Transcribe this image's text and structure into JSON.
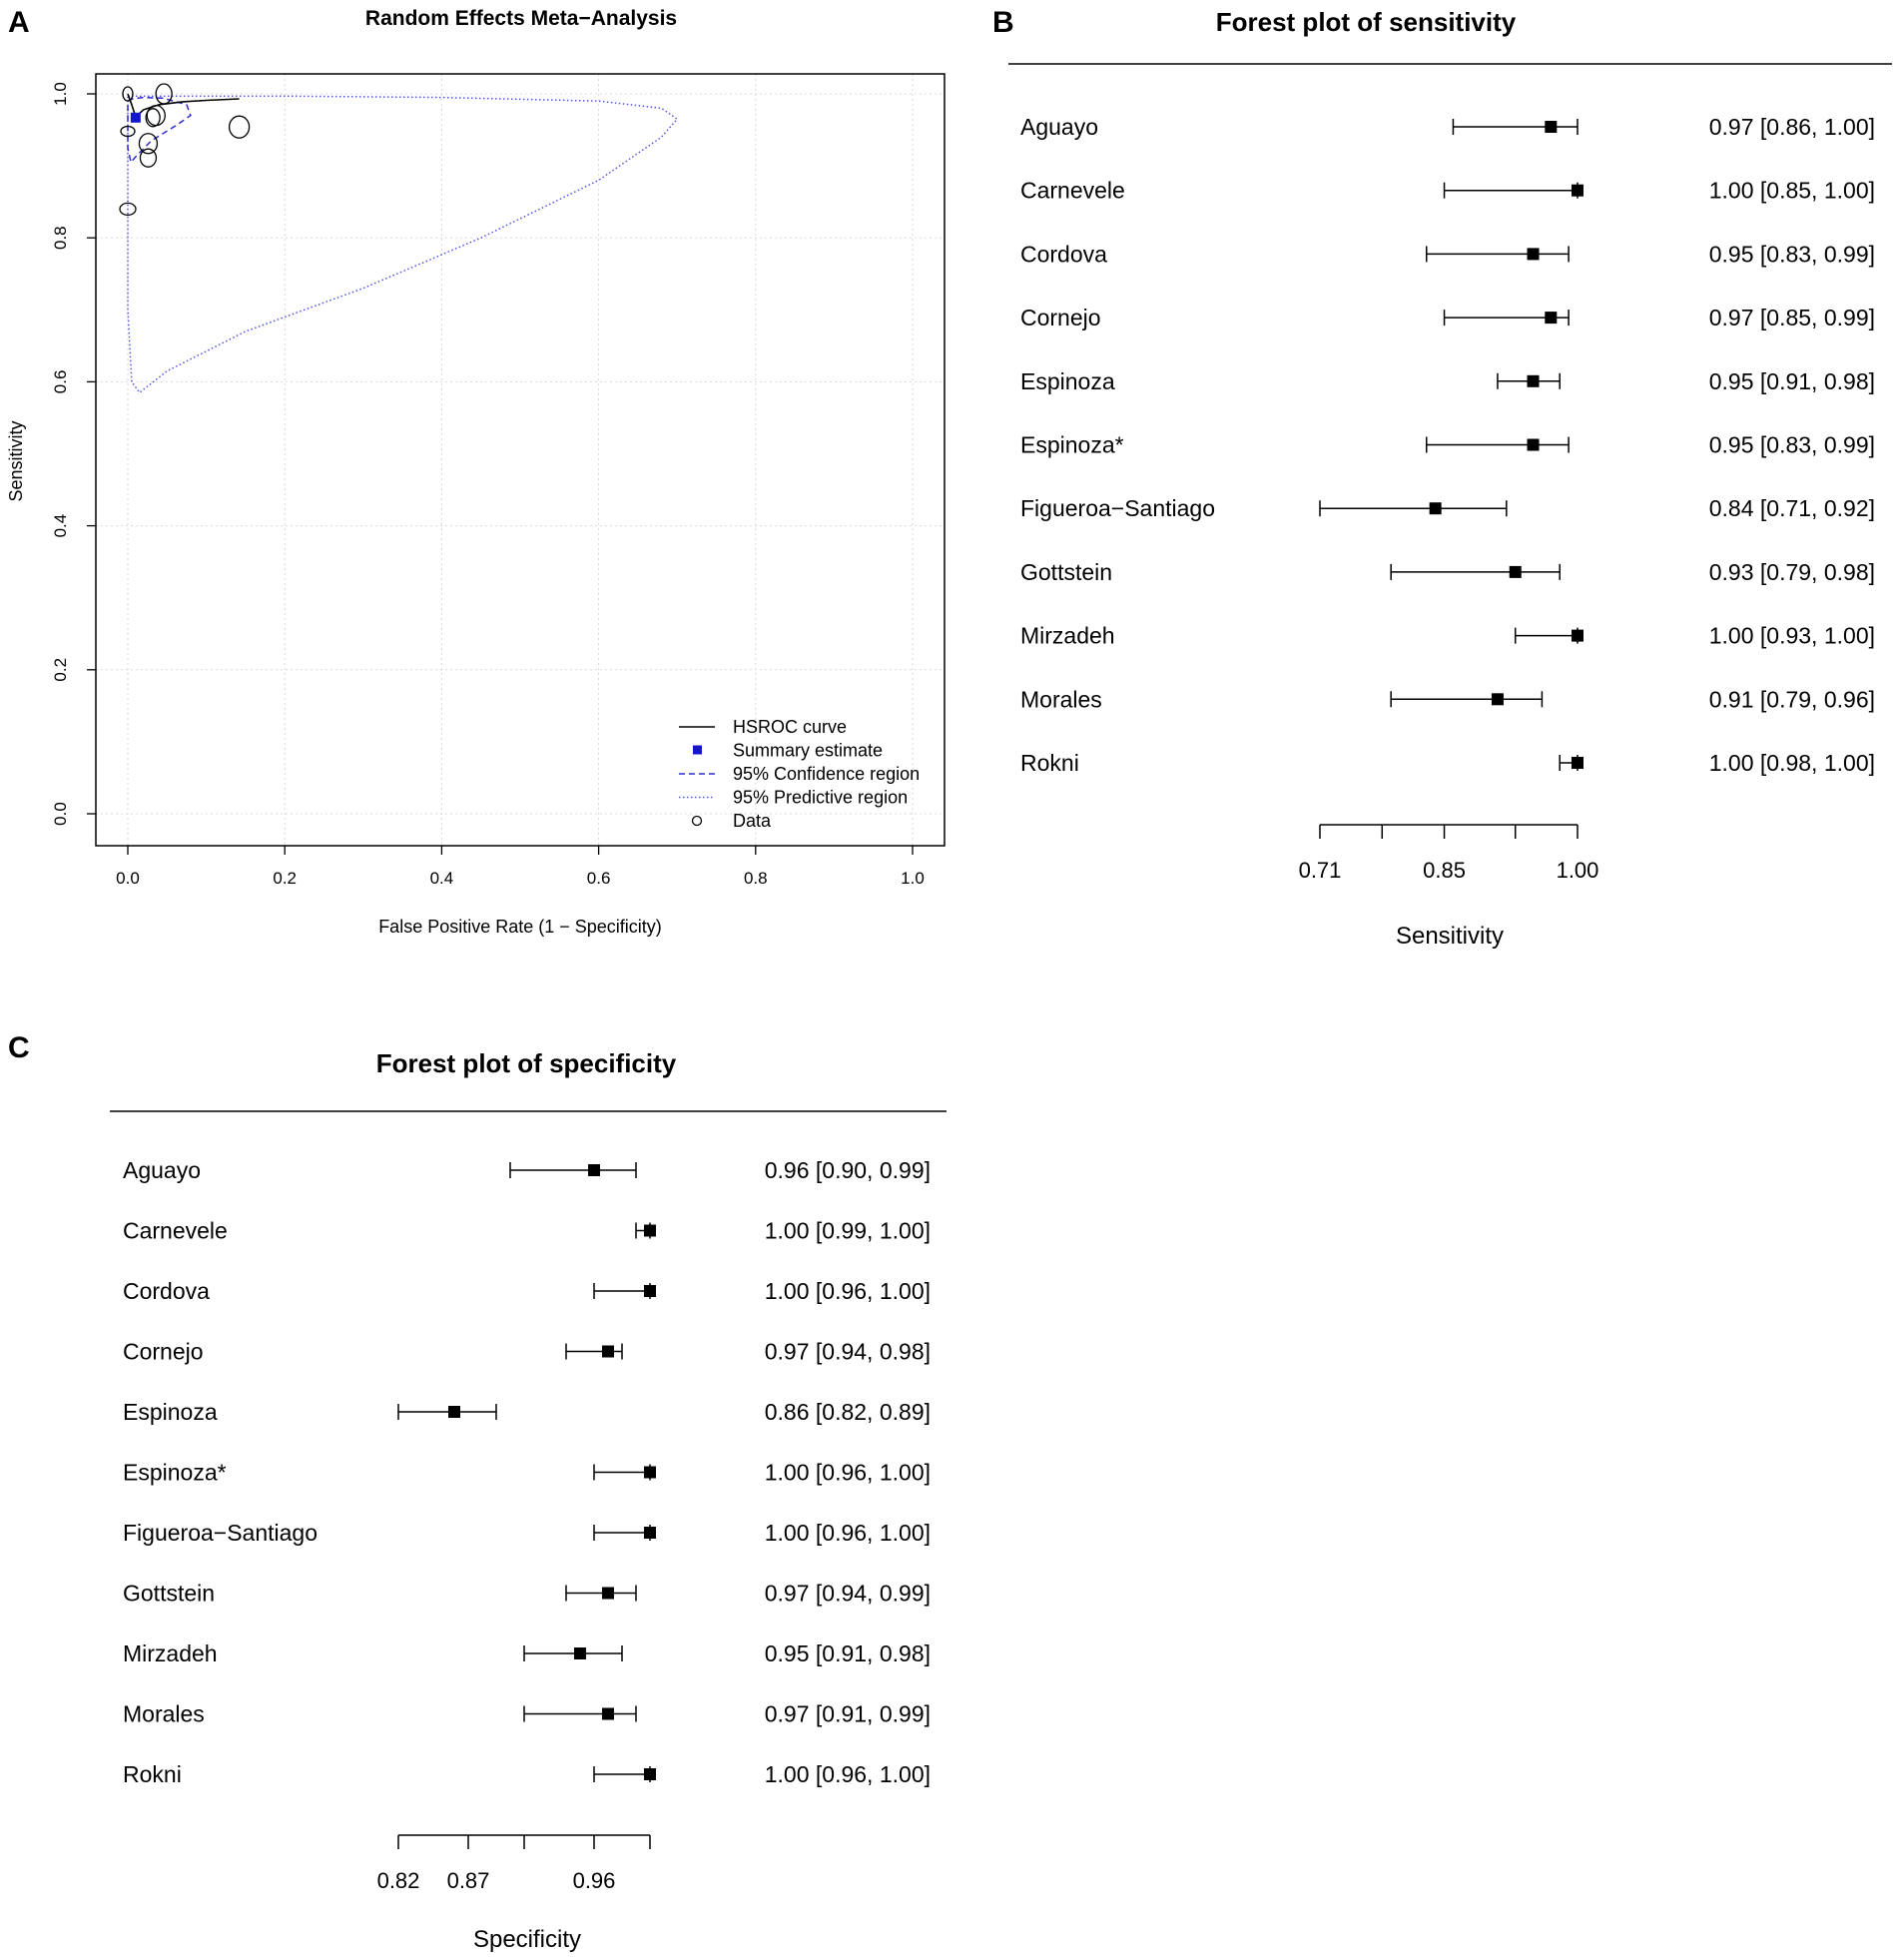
{
  "panels": {
    "A": "A",
    "B": "B",
    "C": "C"
  },
  "chart_data": [
    {
      "type": "scatter",
      "panel": "A",
      "title": "Random Effects Meta−Analysis",
      "xlabel": "False Positive Rate (1 − Specificity)",
      "ylabel": "Sensitivity",
      "xlim": [
        0,
        1
      ],
      "ylim": [
        0,
        1
      ],
      "xticks": [
        "0.0",
        "0.2",
        "0.4",
        "0.6",
        "0.8",
        "1.0"
      ],
      "yticks": [
        "0.0",
        "0.2",
        "0.4",
        "0.6",
        "0.8",
        "1.0"
      ],
      "grid": true,
      "legend_position": "bottom-right",
      "legend": [
        "HSROC curve",
        "Summary estimate",
        "95% Confidence region",
        "95% Predictive region",
        "Data"
      ],
      "summary_estimate": {
        "fpr": 0.01,
        "sens": 0.967
      },
      "hsroc_curve": {
        "fpr": [
          0.0,
          0.005,
          0.01,
          0.02,
          0.04,
          0.07,
          0.1,
          0.142
        ],
        "sens": [
          1.0,
          0.985,
          0.968,
          0.978,
          0.985,
          0.989,
          0.991,
          0.993
        ]
      },
      "confidence_region": {
        "fpr": [
          0.0,
          0.006,
          0.02,
          0.045,
          0.075,
          0.08,
          0.06,
          0.03,
          0.012,
          0.004,
          0.0,
          0.0
        ],
        "sens": [
          0.99,
          0.993,
          0.995,
          0.994,
          0.985,
          0.97,
          0.955,
          0.935,
          0.915,
          0.905,
          0.925,
          0.96
        ]
      },
      "predictive_region": {
        "fpr": [
          0.0,
          0.05,
          0.2,
          0.4,
          0.6,
          0.68,
          0.7,
          0.68,
          0.6,
          0.45,
          0.3,
          0.15,
          0.05,
          0.015,
          0.005,
          0.0,
          0.0,
          0.0
        ],
        "sens": [
          0.997,
          0.997,
          0.997,
          0.995,
          0.99,
          0.98,
          0.965,
          0.94,
          0.88,
          0.8,
          0.73,
          0.67,
          0.615,
          0.585,
          0.6,
          0.7,
          0.85,
          0.97
        ]
      },
      "data_points": [
        {
          "fpr": 0.0,
          "sens": 1.0
        },
        {
          "fpr": 0.046,
          "sens": 1.0
        },
        {
          "fpr": 0.036,
          "sens": 0.97
        },
        {
          "fpr": 0.032,
          "sens": 0.967
        },
        {
          "fpr": 0.0,
          "sens": 0.948
        },
        {
          "fpr": 0.142,
          "sens": 0.954
        },
        {
          "fpr": 0.026,
          "sens": 0.931
        },
        {
          "fpr": 0.026,
          "sens": 0.911
        },
        {
          "fpr": 0.0,
          "sens": 0.84
        }
      ]
    },
    {
      "type": "forest",
      "panel": "B",
      "title": "Forest plot of sensitivity",
      "xlabel": "Sensitivity",
      "xlim": [
        0.71,
        1.0
      ],
      "xticks": [
        0.71,
        0.78,
        0.85,
        0.93,
        1.0
      ],
      "xtick_labels": [
        "0.71",
        "",
        "0.85",
        "",
        "1.00"
      ],
      "studies": [
        {
          "name": "Aguayo",
          "est": 0.97,
          "lo": 0.86,
          "hi": 1.0,
          "label": "0.97 [0.86, 1.00]"
        },
        {
          "name": "Carnevele",
          "est": 1.0,
          "lo": 0.85,
          "hi": 1.0,
          "label": "1.00 [0.85, 1.00]"
        },
        {
          "name": "Cordova",
          "est": 0.95,
          "lo": 0.83,
          "hi": 0.99,
          "label": "0.95 [0.83, 0.99]"
        },
        {
          "name": "Cornejo",
          "est": 0.97,
          "lo": 0.85,
          "hi": 0.99,
          "label": "0.97 [0.85, 0.99]"
        },
        {
          "name": "Espinoza",
          "est": 0.95,
          "lo": 0.91,
          "hi": 0.98,
          "label": "0.95 [0.91, 0.98]"
        },
        {
          "name": "Espinoza*",
          "est": 0.95,
          "lo": 0.83,
          "hi": 0.99,
          "label": "0.95 [0.83, 0.99]"
        },
        {
          "name": "Figueroa−Santiago",
          "est": 0.84,
          "lo": 0.71,
          "hi": 0.92,
          "label": "0.84 [0.71, 0.92]"
        },
        {
          "name": "Gottstein",
          "est": 0.93,
          "lo": 0.79,
          "hi": 0.98,
          "label": "0.93 [0.79, 0.98]"
        },
        {
          "name": "Mirzadeh",
          "est": 1.0,
          "lo": 0.93,
          "hi": 1.0,
          "label": "1.00 [0.93, 1.00]"
        },
        {
          "name": "Morales",
          "est": 0.91,
          "lo": 0.79,
          "hi": 0.96,
          "label": "0.91 [0.79, 0.96]"
        },
        {
          "name": "Rokni",
          "est": 1.0,
          "lo": 0.98,
          "hi": 1.0,
          "label": "1.00 [0.98, 1.00]"
        }
      ]
    },
    {
      "type": "forest",
      "panel": "C",
      "title": "Forest plot of specificity",
      "xlabel": "Specificity",
      "xlim": [
        0.82,
        1.0
      ],
      "xticks": [
        0.82,
        0.87,
        0.91,
        0.96,
        1.0
      ],
      "xtick_labels": [
        "0.82",
        "0.87",
        "",
        "0.96",
        ""
      ],
      "studies": [
        {
          "name": "Aguayo",
          "est": 0.96,
          "lo": 0.9,
          "hi": 0.99,
          "label": "0.96 [0.90, 0.99]"
        },
        {
          "name": "Carnevele",
          "est": 1.0,
          "lo": 0.99,
          "hi": 1.0,
          "label": "1.00 [0.99, 1.00]"
        },
        {
          "name": "Cordova",
          "est": 1.0,
          "lo": 0.96,
          "hi": 1.0,
          "label": "1.00 [0.96, 1.00]"
        },
        {
          "name": "Cornejo",
          "est": 0.97,
          "lo": 0.94,
          "hi": 0.98,
          "label": "0.97 [0.94, 0.98]"
        },
        {
          "name": "Espinoza",
          "est": 0.86,
          "lo": 0.82,
          "hi": 0.89,
          "label": "0.86 [0.82, 0.89]"
        },
        {
          "name": "Espinoza*",
          "est": 1.0,
          "lo": 0.96,
          "hi": 1.0,
          "label": "1.00 [0.96, 1.00]"
        },
        {
          "name": "Figueroa−Santiago",
          "est": 1.0,
          "lo": 0.96,
          "hi": 1.0,
          "label": "1.00 [0.96, 1.00]"
        },
        {
          "name": "Gottstein",
          "est": 0.97,
          "lo": 0.94,
          "hi": 0.99,
          "label": "0.97 [0.94, 0.99]"
        },
        {
          "name": "Mirzadeh",
          "est": 0.95,
          "lo": 0.91,
          "hi": 0.98,
          "label": "0.95 [0.91, 0.98]"
        },
        {
          "name": "Morales",
          "est": 0.97,
          "lo": 0.91,
          "hi": 0.99,
          "label": "0.97 [0.91, 0.99]"
        },
        {
          "name": "Rokni",
          "est": 1.0,
          "lo": 0.96,
          "hi": 1.0,
          "label": "1.00 [0.96, 1.00]"
        }
      ]
    }
  ],
  "colors": {
    "axis": "#000000",
    "grid": "#d9d9d9",
    "summary": "#1515cc",
    "confidence": "#2b2bd0",
    "predictive": "#5555dd"
  }
}
